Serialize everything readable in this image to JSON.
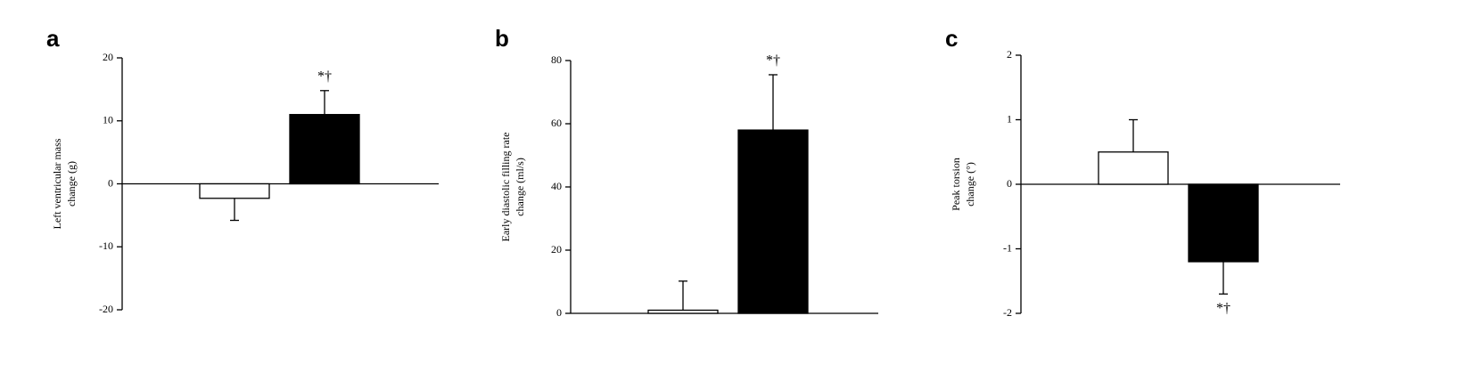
{
  "chart_data": [
    {
      "type": "bar",
      "panel_label": "a",
      "ylabel": [
        "Left ventricular mass",
        "change (g)"
      ],
      "categories": [
        null,
        null
      ],
      "values": [
        -2.3,
        11
      ],
      "errors": [
        3.5,
        3.8
      ],
      "colors": [
        "#ffffff",
        "#000000"
      ],
      "value_annotations": [
        null,
        "*†"
      ],
      "ylim": [
        -20,
        20
      ],
      "yticks": [
        -20,
        -10,
        0,
        10,
        20
      ]
    },
    {
      "type": "bar",
      "panel_label": "b",
      "ylabel": [
        "Early diastolic filling rate",
        "change (ml/s)"
      ],
      "categories": [
        null,
        null
      ],
      "values": [
        1,
        58
      ],
      "errors": [
        9.2,
        17.5
      ],
      "colors": [
        "#ffffff",
        "#000000"
      ],
      "value_annotations": [
        null,
        "*†"
      ],
      "ylim": [
        0,
        80
      ],
      "yticks": [
        0,
        20,
        40,
        60,
        80
      ]
    },
    {
      "type": "bar",
      "panel_label": "c",
      "ylabel": [
        "Peak torsion",
        "change (°)"
      ],
      "categories": [
        null,
        null
      ],
      "values": [
        0.5,
        -1.2
      ],
      "errors": [
        0.5,
        0.5
      ],
      "colors": [
        "#ffffff",
        "#000000"
      ],
      "value_annotations": [
        null,
        "*†"
      ],
      "ylim": [
        -2,
        2
      ],
      "yticks": [
        -2,
        -1,
        0,
        1,
        2
      ]
    }
  ]
}
